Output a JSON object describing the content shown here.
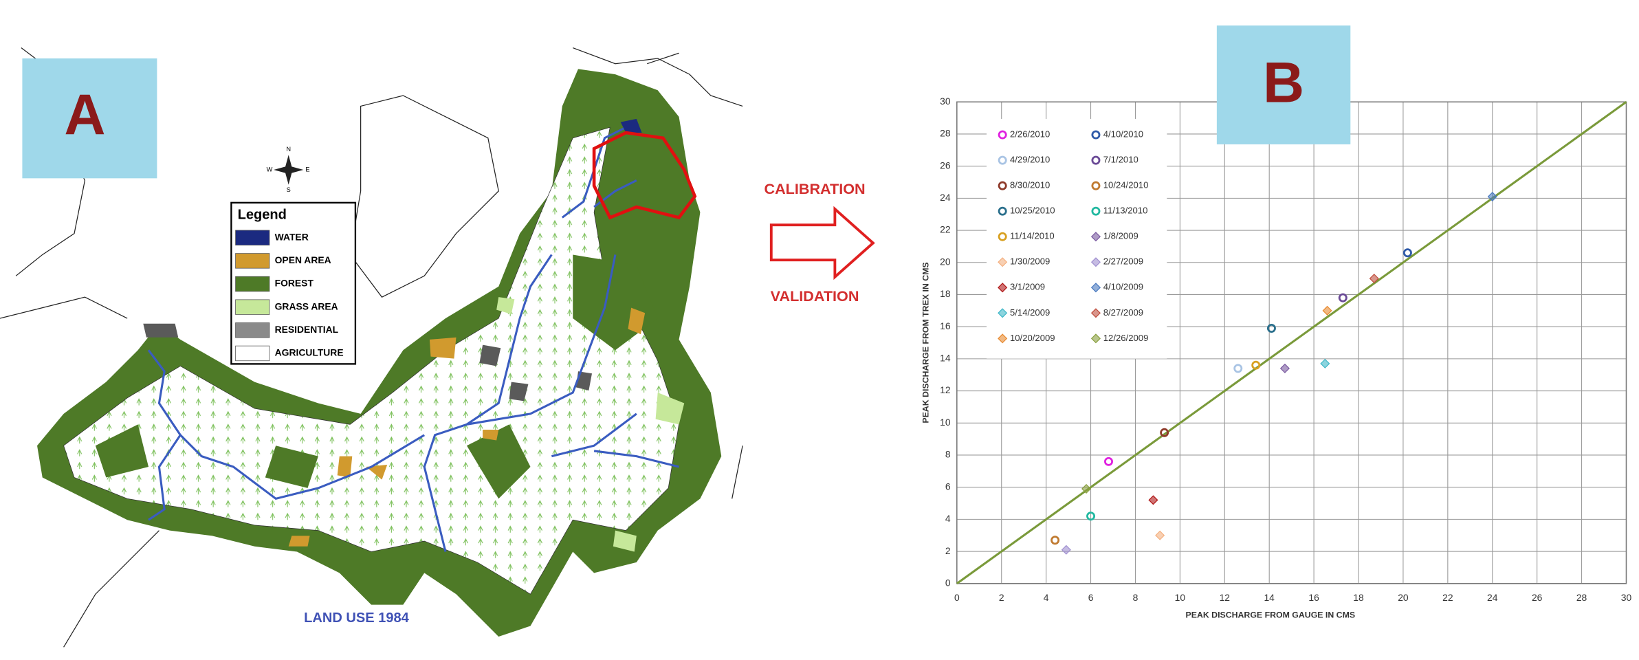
{
  "panel_a": {
    "label": "A",
    "legend_title": "Legend",
    "legend": [
      {
        "label": "WATER",
        "color": "#1b2a80"
      },
      {
        "label": "OPEN AREA",
        "color": "#d19a2e"
      },
      {
        "label": "FOREST",
        "color": "#4e7a27"
      },
      {
        "label": "GRASS AREA",
        "color": "#c6e89a"
      },
      {
        "label": "RESIDENTIAL",
        "color": "#8a8a8a"
      },
      {
        "label": "AGRICULTURE",
        "color": "#ffffff"
      }
    ],
    "compass": {
      "n": "N",
      "s": "S",
      "e": "E",
      "w": "W"
    },
    "caption": "LAND USE 1984"
  },
  "arrow": {
    "top": "CALIBRATION",
    "bottom": "VALIDATION"
  },
  "panel_b": {
    "label": "B"
  },
  "chart_data": {
    "type": "scatter",
    "x_label": "PEAK DISCHARGE FROM GAUGE IN CMS",
    "y_label": "PEAK DISCHARGE FROM TREX IN CMS",
    "xlim": [
      0,
      30
    ],
    "ylim": [
      0,
      30
    ],
    "xticks": [
      0,
      2,
      4,
      6,
      8,
      10,
      12,
      14,
      16,
      18,
      20,
      22,
      24,
      26,
      28,
      30
    ],
    "yticks": [
      0,
      2,
      4,
      6,
      8,
      10,
      12,
      14,
      16,
      18,
      20,
      22,
      24,
      26,
      28,
      30
    ],
    "grid": true,
    "legend": "upper left",
    "series": [
      {
        "name": "2/26/2010",
        "color": "#e020e0",
        "marker": "circle",
        "x": [
          6.8
        ],
        "values": [
          7.6
        ]
      },
      {
        "name": "4/10/2010",
        "color": "#2f5aa8",
        "marker": "circle",
        "x": [
          20.2
        ],
        "values": [
          20.6
        ]
      },
      {
        "name": "4/29/2010",
        "color": "#a9c4e4",
        "marker": "circle",
        "x": [
          12.6
        ],
        "values": [
          13.4
        ]
      },
      {
        "name": "7/1/2010",
        "color": "#6a4a96",
        "marker": "circle",
        "x": [
          17.3
        ],
        "values": [
          17.8
        ]
      },
      {
        "name": "8/30/2010",
        "color": "#8e3a2a",
        "marker": "circle",
        "x": [
          9.3
        ],
        "values": [
          9.4
        ]
      },
      {
        "name": "10/24/2010",
        "color": "#c07a30",
        "marker": "circle",
        "x": [
          4.4
        ],
        "values": [
          2.7
        ]
      },
      {
        "name": "10/25/2010",
        "color": "#2a6f8c",
        "marker": "circle",
        "x": [
          14.1
        ],
        "values": [
          15.9
        ]
      },
      {
        "name": "11/13/2010",
        "color": "#20b8a0",
        "marker": "circle",
        "x": [
          6.0
        ],
        "values": [
          4.2
        ]
      },
      {
        "name": "11/14/2010",
        "color": "#d8a020",
        "marker": "circle",
        "x": [
          13.4
        ],
        "values": [
          13.6
        ]
      },
      {
        "name": "1/8/2009",
        "color": "#7a5aa0",
        "marker": "diamond",
        "x": [
          14.7
        ],
        "values": [
          13.4
        ]
      },
      {
        "name": "1/30/2009",
        "color": "#f4b080",
        "marker": "diamond",
        "x": [
          9.1
        ],
        "values": [
          3.0
        ]
      },
      {
        "name": "2/27/2009",
        "color": "#a090d0",
        "marker": "diamond",
        "x": [
          4.9
        ],
        "values": [
          2.1
        ]
      },
      {
        "name": "3/1/2009",
        "color": "#b01818",
        "marker": "diamond",
        "x": [
          8.8
        ],
        "values": [
          5.2
        ]
      },
      {
        "name": "4/10/2009",
        "color": "#4a7ac0",
        "marker": "diamond",
        "x": [
          24.0
        ],
        "values": [
          24.1
        ]
      },
      {
        "name": "5/14/2009",
        "color": "#40b8c8",
        "marker": "diamond",
        "x": [
          16.5
        ],
        "values": [
          13.7
        ]
      },
      {
        "name": "8/27/2009",
        "color": "#c05040",
        "marker": "diamond",
        "x": [
          18.7
        ],
        "values": [
          19.0
        ]
      },
      {
        "name": "10/20/2009",
        "color": "#e88a30",
        "marker": "diamond",
        "x": [
          16.6
        ],
        "values": [
          17.0
        ]
      },
      {
        "name": "12/26/2009",
        "color": "#8aa040",
        "marker": "diamond",
        "x": [
          5.8
        ],
        "values": [
          5.9
        ]
      }
    ]
  }
}
